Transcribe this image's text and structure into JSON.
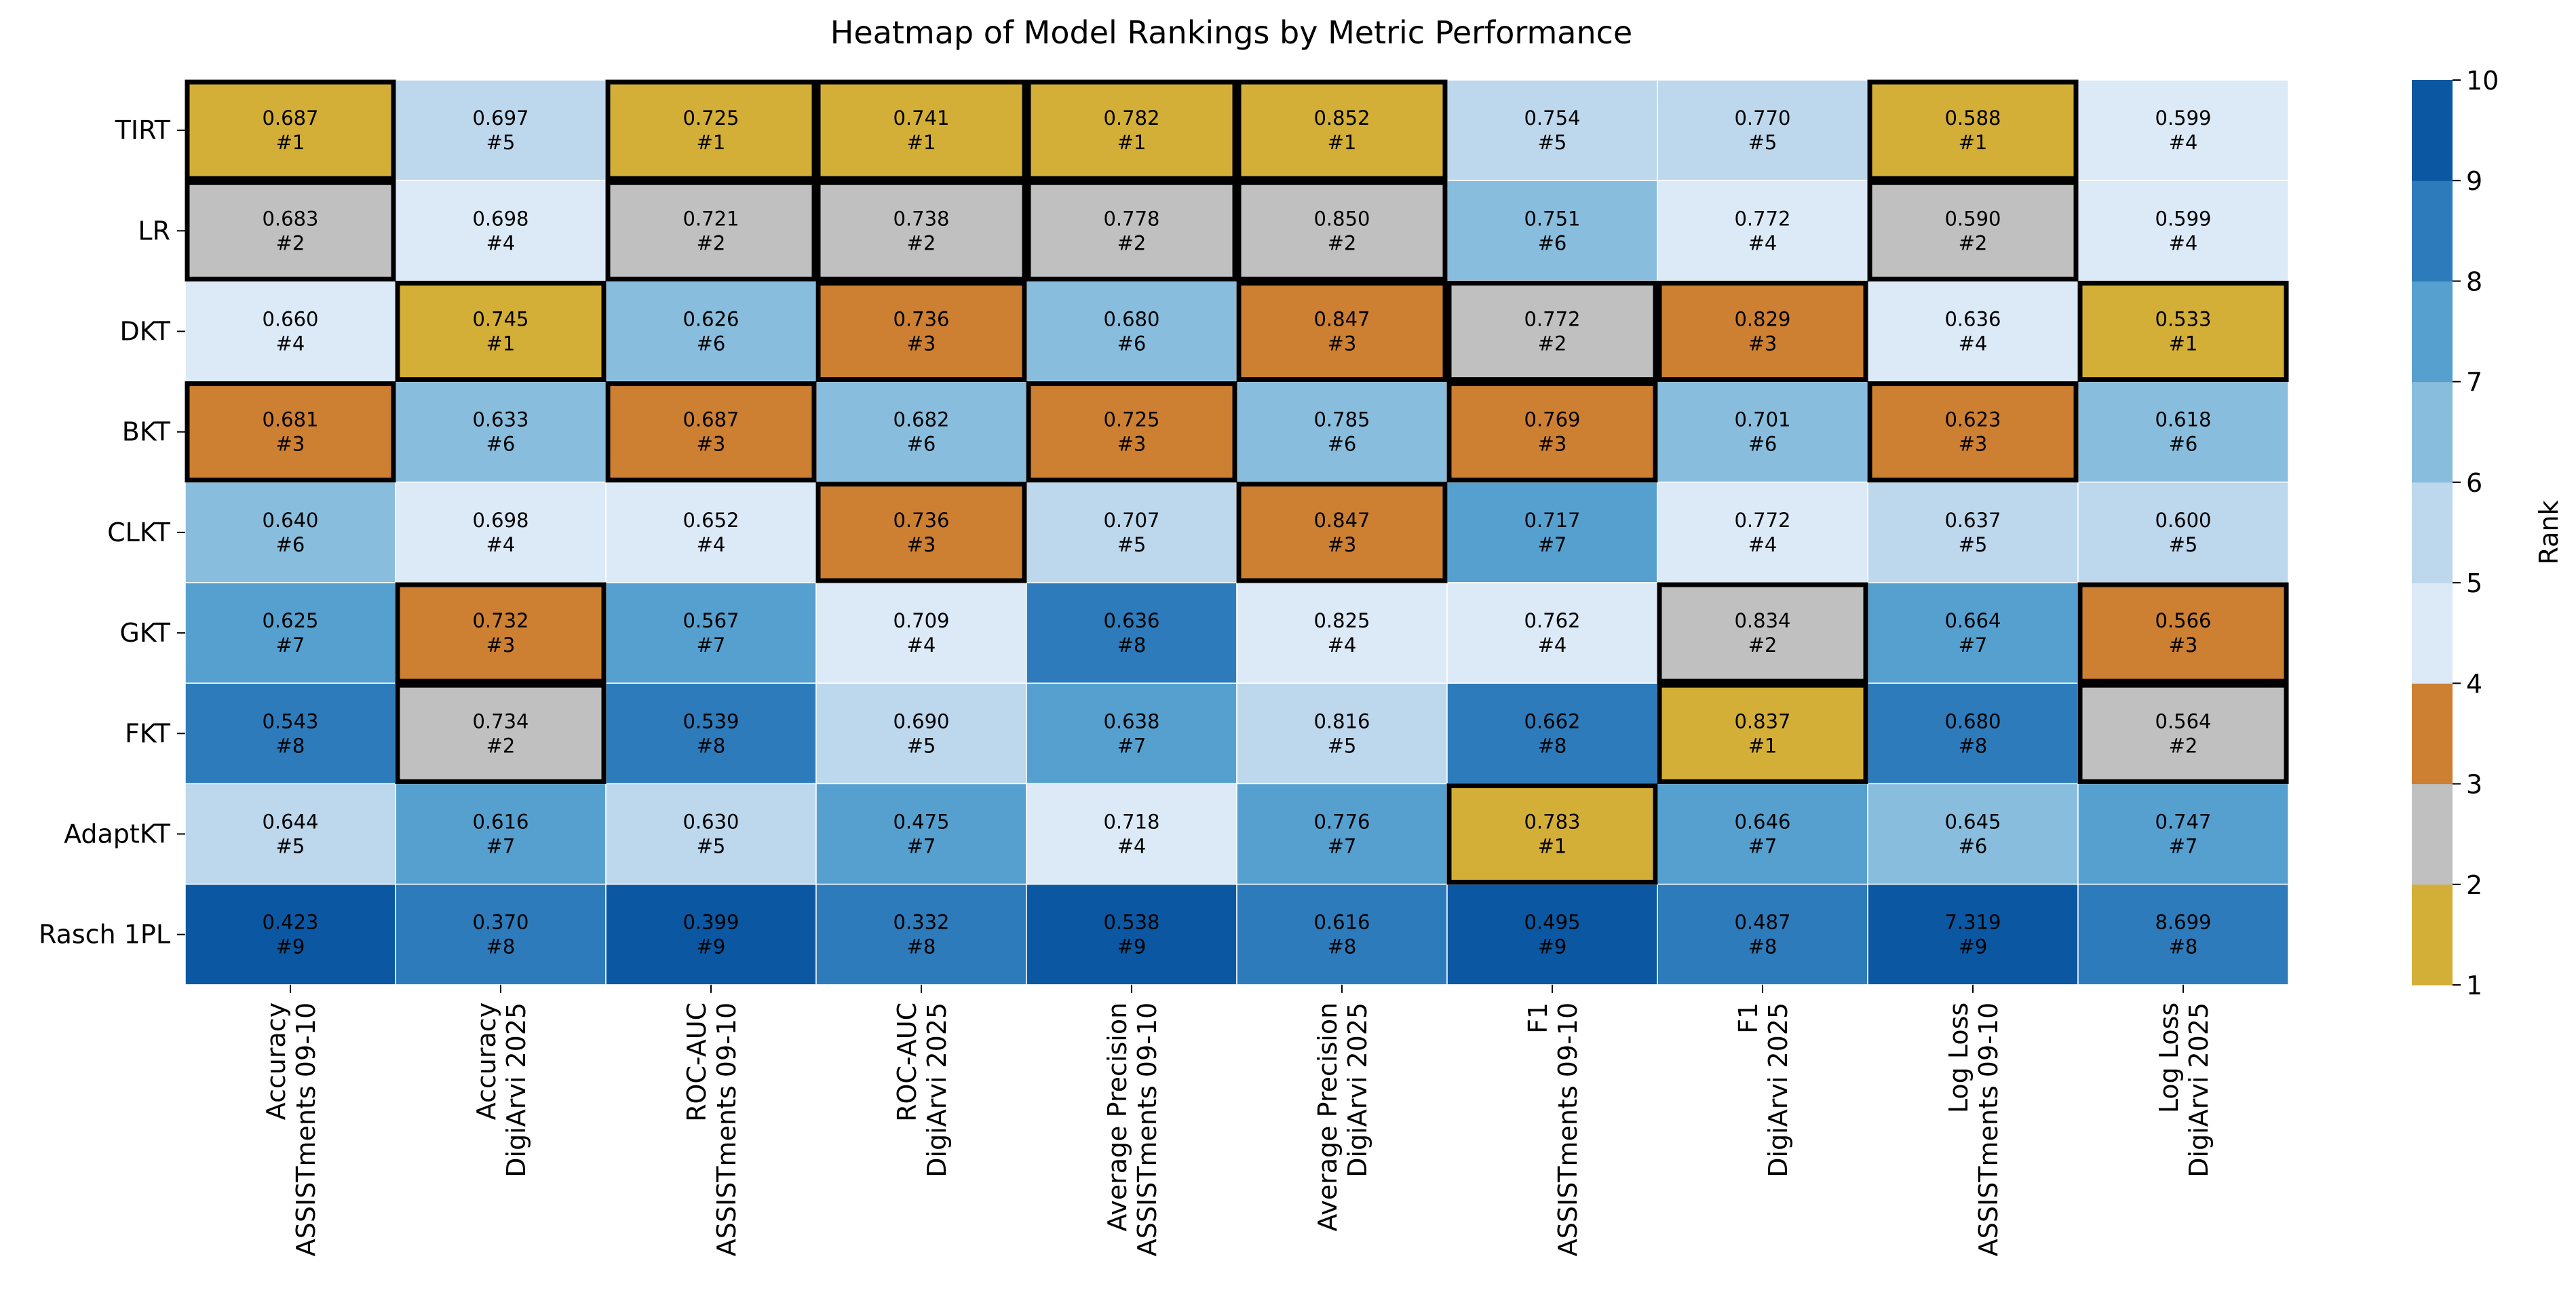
{
  "chart_data": {
    "type": "heatmap",
    "title": "Heatmap of Model Rankings by Metric Performance",
    "rows": [
      "TIRT",
      "LR",
      "DKT",
      "BKT",
      "CLKT",
      "GKT",
      "FKT",
      "AdaptKT",
      "Rasch 1PL"
    ],
    "columns": [
      [
        "Accuracy",
        "ASSISTments 09-10"
      ],
      [
        "Accuracy",
        "DigiArvi 2025"
      ],
      [
        "ROC-AUC",
        "ASSISTments 09-10"
      ],
      [
        "ROC-AUC",
        "DigiArvi 2025"
      ],
      [
        "Average Precision",
        "ASSISTments 09-10"
      ],
      [
        "Average Precision",
        "DigiArvi 2025"
      ],
      [
        "F1",
        "ASSISTments 09-10"
      ],
      [
        "F1",
        "DigiArvi 2025"
      ],
      [
        "Log Loss",
        "ASSISTments 09-10"
      ],
      [
        "Log Loss",
        "DigiArvi 2025"
      ]
    ],
    "values": [
      [
        "0.687",
        "0.697",
        "0.725",
        "0.741",
        "0.782",
        "0.852",
        "0.754",
        "0.770",
        "0.588",
        "0.599"
      ],
      [
        "0.683",
        "0.698",
        "0.721",
        "0.738",
        "0.778",
        "0.850",
        "0.751",
        "0.772",
        "0.590",
        "0.599"
      ],
      [
        "0.660",
        "0.745",
        "0.626",
        "0.736",
        "0.680",
        "0.847",
        "0.772",
        "0.829",
        "0.636",
        "0.533"
      ],
      [
        "0.681",
        "0.633",
        "0.687",
        "0.682",
        "0.725",
        "0.785",
        "0.769",
        "0.701",
        "0.623",
        "0.618"
      ],
      [
        "0.640",
        "0.698",
        "0.652",
        "0.736",
        "0.707",
        "0.847",
        "0.717",
        "0.772",
        "0.637",
        "0.600"
      ],
      [
        "0.625",
        "0.732",
        "0.567",
        "0.709",
        "0.636",
        "0.825",
        "0.762",
        "0.834",
        "0.664",
        "0.566"
      ],
      [
        "0.543",
        "0.734",
        "0.539",
        "0.690",
        "0.638",
        "0.816",
        "0.662",
        "0.837",
        "0.680",
        "0.564"
      ],
      [
        "0.644",
        "0.616",
        "0.630",
        "0.475",
        "0.718",
        "0.776",
        "0.783",
        "0.646",
        "0.645",
        "0.747"
      ],
      [
        "0.423",
        "0.370",
        "0.399",
        "0.332",
        "0.538",
        "0.616",
        "0.495",
        "0.487",
        "7.319",
        "8.699"
      ]
    ],
    "ranks": [
      [
        1,
        5,
        1,
        1,
        1,
        1,
        5,
        5,
        1,
        4
      ],
      [
        2,
        4,
        2,
        2,
        2,
        2,
        6,
        4,
        2,
        4
      ],
      [
        4,
        1,
        6,
        3,
        6,
        3,
        2,
        3,
        4,
        1
      ],
      [
        3,
        6,
        3,
        6,
        3,
        6,
        3,
        6,
        3,
        6
      ],
      [
        6,
        4,
        4,
        3,
        5,
        3,
        7,
        4,
        5,
        5
      ],
      [
        7,
        3,
        7,
        4,
        8,
        4,
        4,
        2,
        7,
        3
      ],
      [
        8,
        2,
        8,
        5,
        7,
        5,
        8,
        1,
        8,
        2
      ],
      [
        5,
        7,
        5,
        7,
        4,
        7,
        1,
        7,
        6,
        7
      ],
      [
        9,
        8,
        9,
        8,
        9,
        8,
        9,
        8,
        9,
        8
      ]
    ],
    "colorbar": {
      "label": "Rank",
      "range": [
        1,
        10
      ],
      "ticks": [
        1,
        2,
        3,
        4,
        5,
        6,
        7,
        8,
        9,
        10
      ],
      "colors": [
        "#d4af37",
        "#c0c0c0",
        "#cd7f32",
        "#dce9f6",
        "#bdd7ec",
        "#88bddd",
        "#56a0d0",
        "#2d7bbb",
        "#0b57a1"
      ]
    },
    "highlight_top_ranks": [
      1,
      2,
      3
    ]
  }
}
